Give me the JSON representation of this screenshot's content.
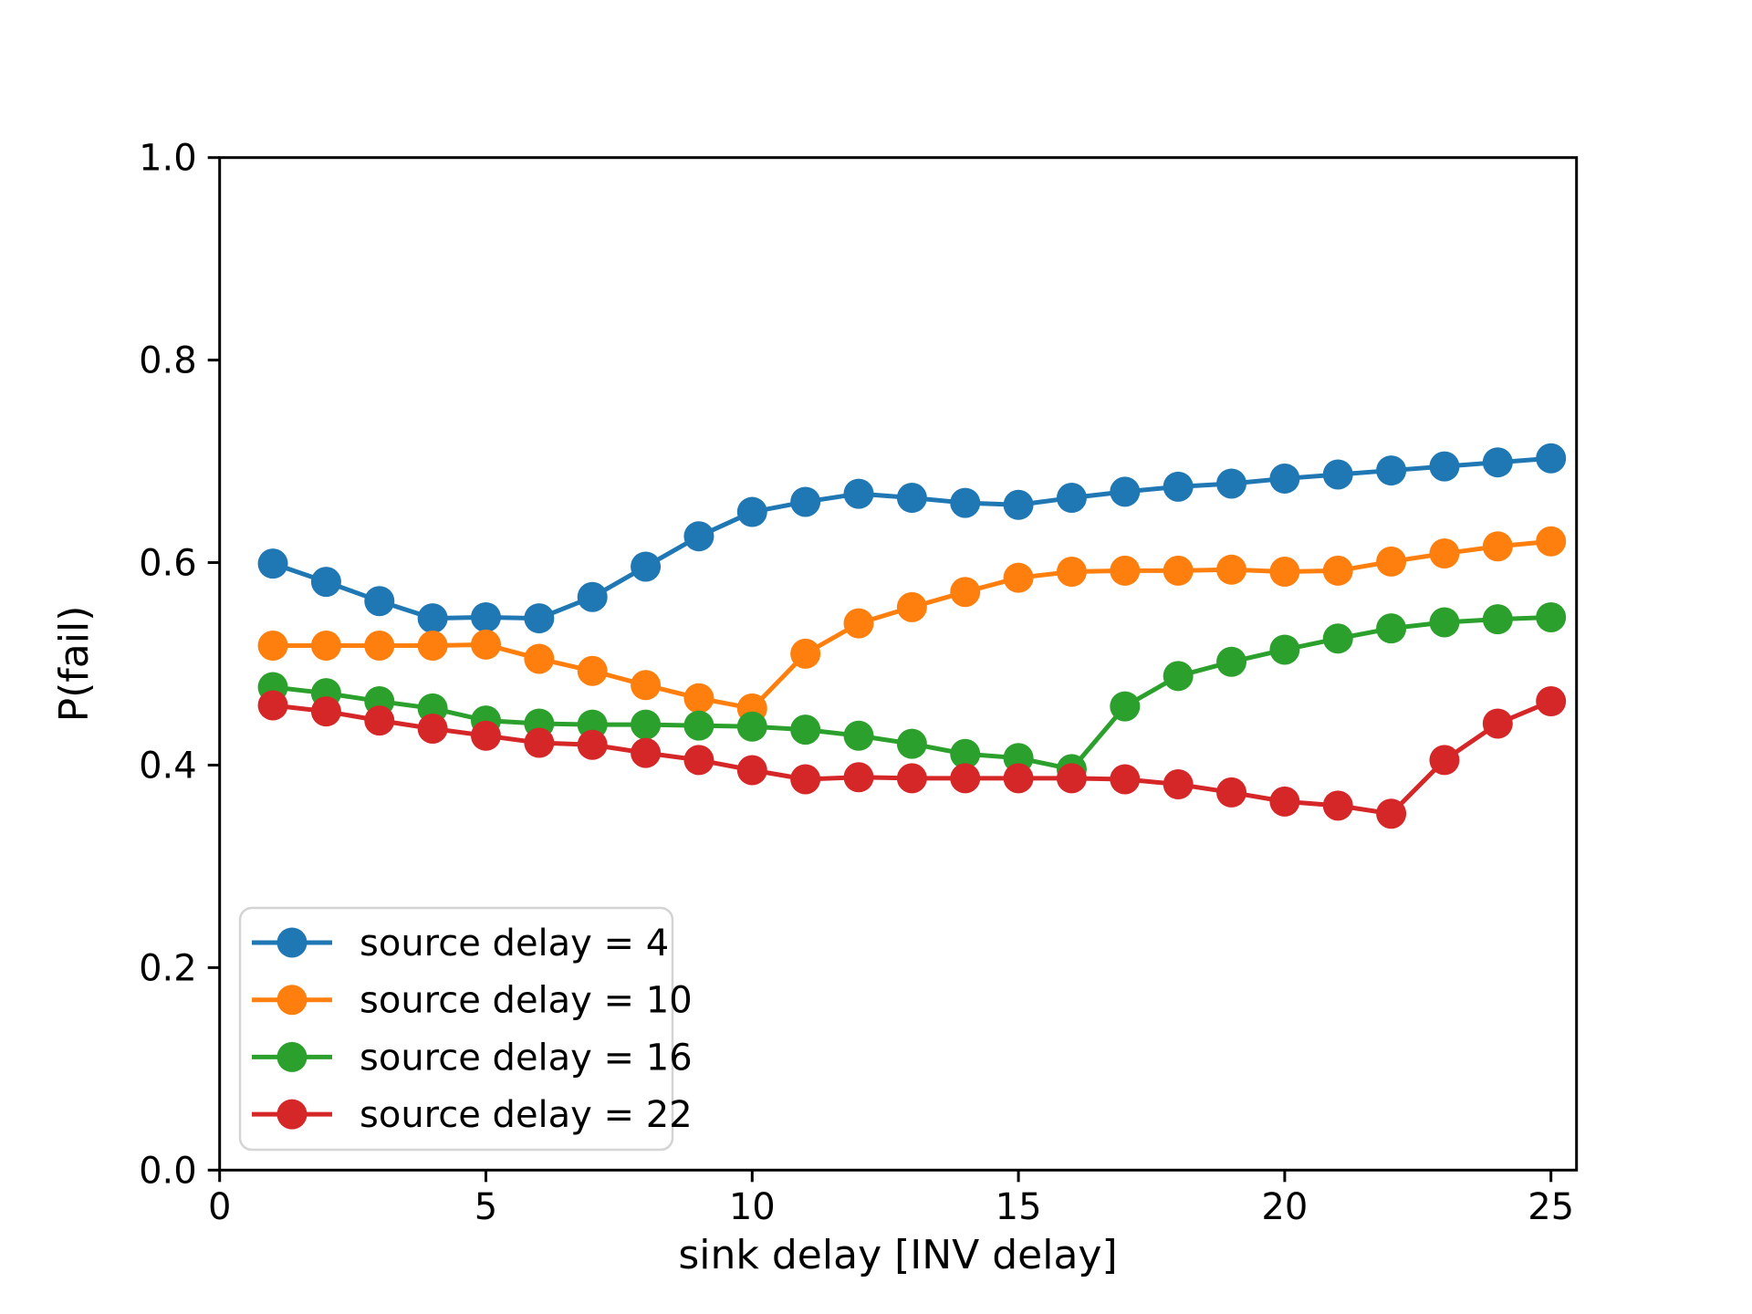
{
  "chart_data": {
    "type": "line",
    "title": "",
    "xlabel": "sink delay [INV delay]",
    "ylabel": "P(fail)",
    "xlim": [
      0,
      25.48
    ],
    "ylim": [
      0.0,
      1.0
    ],
    "grid": false,
    "legend_position": "lower left",
    "marker": "circle",
    "xticks": {
      "values": [
        0,
        5,
        10,
        15,
        20,
        25
      ],
      "labels": [
        "0",
        "5",
        "10",
        "15",
        "20",
        "25"
      ]
    },
    "yticks": {
      "values": [
        0.0,
        0.2,
        0.4,
        0.6,
        0.8,
        1.0
      ],
      "labels": [
        "0.0",
        "0.2",
        "0.4",
        "0.6",
        "0.8",
        "1.0"
      ]
    },
    "x": [
      1,
      2,
      3,
      4,
      5,
      6,
      7,
      8,
      9,
      10,
      11,
      12,
      13,
      14,
      15,
      16,
      17,
      18,
      19,
      20,
      21,
      22,
      23,
      24,
      25
    ],
    "series": [
      {
        "name": "source delay = 4",
        "color": "#1f77b4",
        "values": [
          0.599,
          0.581,
          0.562,
          0.545,
          0.546,
          0.545,
          0.566,
          0.596,
          0.626,
          0.65,
          0.66,
          0.668,
          0.664,
          0.659,
          0.657,
          0.664,
          0.67,
          0.675,
          0.678,
          0.683,
          0.687,
          0.691,
          0.695,
          0.699,
          0.703
        ]
      },
      {
        "name": "source delay = 10",
        "color": "#ff7f0e",
        "values": [
          0.518,
          0.518,
          0.518,
          0.518,
          0.519,
          0.505,
          0.493,
          0.479,
          0.466,
          0.456,
          0.51,
          0.54,
          0.556,
          0.571,
          0.585,
          0.591,
          0.592,
          0.592,
          0.593,
          0.591,
          0.592,
          0.601,
          0.609,
          0.616,
          0.621
        ]
      },
      {
        "name": "source delay = 16",
        "color": "#2ca02c",
        "values": [
          0.477,
          0.471,
          0.463,
          0.456,
          0.444,
          0.441,
          0.44,
          0.44,
          0.439,
          0.438,
          0.435,
          0.429,
          0.421,
          0.411,
          0.407,
          0.396,
          0.458,
          0.488,
          0.502,
          0.514,
          0.525,
          0.535,
          0.541,
          0.544,
          0.546
        ]
      },
      {
        "name": "source delay = 22",
        "color": "#d62728",
        "values": [
          0.459,
          0.453,
          0.444,
          0.436,
          0.429,
          0.422,
          0.42,
          0.412,
          0.405,
          0.395,
          0.386,
          0.388,
          0.387,
          0.387,
          0.387,
          0.387,
          0.386,
          0.381,
          0.373,
          0.364,
          0.36,
          0.352,
          0.405,
          0.441,
          0.463
        ]
      }
    ]
  }
}
